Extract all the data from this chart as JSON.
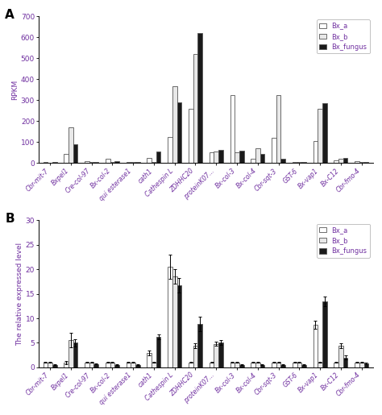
{
  "categories": [
    "Cbr-mit-7",
    "Bxpel1",
    "Cre-col-97",
    "Bx-col-2",
    "qui esterase1",
    "cath1",
    "Cathespin L",
    "ZDHHC20",
    "proteinK07...",
    "Bx-col-3",
    "Bx-col-4",
    "Cbr-sqt-3",
    "GST-6",
    "Bx-vap1",
    "Bx-C12",
    "Cbr-fmo-4"
  ],
  "panel_A": {
    "Bx_a": [
      5,
      45,
      10,
      20,
      5,
      25,
      125,
      260,
      50,
      325,
      20,
      120,
      5,
      105,
      15,
      10
    ],
    "Bx_b": [
      3,
      170,
      5,
      5,
      5,
      5,
      365,
      520,
      55,
      50,
      70,
      325,
      5,
      260,
      20,
      5
    ],
    "Bx_fungus": [
      5,
      90,
      5,
      10,
      5,
      55,
      290,
      620,
      65,
      60,
      45,
      20,
      5,
      285,
      25,
      5
    ],
    "ylabel": "RPKM",
    "ylim": [
      0,
      700
    ],
    "yticks": [
      0,
      100,
      200,
      300,
      400,
      500,
      600,
      700
    ]
  },
  "panel_B": {
    "Bx_a": [
      1.0,
      1.0,
      1.0,
      1.0,
      1.0,
      3.0,
      20.5,
      1.0,
      1.0,
      1.0,
      1.0,
      1.0,
      1.0,
      8.7,
      1.0,
      1.0
    ],
    "Bx_b": [
      1.0,
      5.5,
      1.0,
      1.0,
      1.0,
      1.0,
      18.5,
      4.4,
      4.8,
      1.0,
      1.0,
      1.0,
      1.0,
      1.0,
      4.4,
      1.0
    ],
    "Bx_fungus": [
      0.5,
      5.0,
      0.7,
      0.5,
      0.5,
      6.2,
      16.8,
      8.8,
      5.0,
      0.5,
      0.5,
      0.5,
      0.5,
      13.5,
      2.0,
      0.8
    ],
    "Bx_a_err": [
      0.1,
      0.3,
      0.1,
      0.1,
      0.1,
      0.5,
      2.5,
      0.1,
      0.1,
      0.1,
      0.1,
      0.1,
      0.1,
      0.8,
      0.1,
      0.1
    ],
    "Bx_b_err": [
      0.1,
      1.5,
      0.1,
      0.1,
      0.1,
      0.1,
      1.5,
      0.5,
      0.4,
      0.1,
      0.1,
      0.1,
      0.1,
      0.1,
      0.5,
      0.1
    ],
    "Bx_fungus_err": [
      0.1,
      0.8,
      0.1,
      0.1,
      0.1,
      0.5,
      1.5,
      1.5,
      0.5,
      0.1,
      0.1,
      0.1,
      0.1,
      1.0,
      0.4,
      0.1
    ],
    "ylabel": "The relative expressed level",
    "ylim": [
      0,
      30
    ],
    "yticks": [
      0,
      5,
      10,
      15,
      20,
      25,
      30
    ]
  },
  "colors": {
    "Bx_a": "#ffffff",
    "Bx_b": "#e8e8e8",
    "Bx_fungus": "#1a1a1a"
  },
  "bar_edgecolor": "#555555",
  "legend_labels": [
    "Bx_a",
    "Bx_b",
    "Bx_fungus"
  ],
  "panel_labels": [
    "A",
    "B"
  ],
  "purple": "#7030a0",
  "figsize": [
    4.74,
    5.15
  ],
  "dpi": 100,
  "bar_width": 0.22
}
